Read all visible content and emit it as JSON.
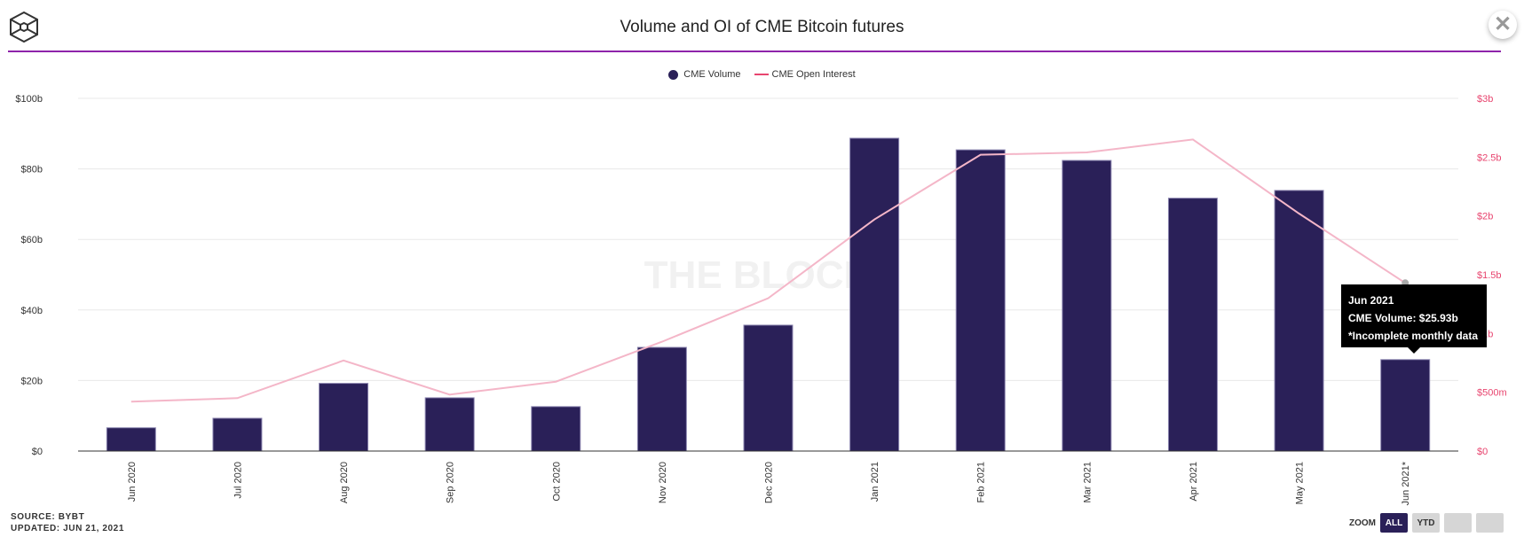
{
  "header": {
    "title": "Volume and OI of CME Bitcoin futures",
    "close_label": "✕"
  },
  "legend": {
    "volume": "CME Volume",
    "oi": "CME Open Interest"
  },
  "watermark": "THE BLOCK",
  "footer": {
    "source": "SOURCE: BYBT",
    "updated": "UPDATED: JUN 21, 2021"
  },
  "zoom": {
    "label": "ZOOM",
    "buttons": [
      "ALL",
      "YTD",
      "",
      ""
    ],
    "active": "ALL"
  },
  "tooltip": {
    "line1": "Jun 2021",
    "line2": "CME Volume: $25.93b",
    "line3": "*Incomplete monthly data"
  },
  "colors": {
    "volume": "#2a2058",
    "oi": "#f4b6c8",
    "right_axis": "#e8456f",
    "rule": "#8e24aa"
  },
  "chart_data": {
    "type": "bar",
    "title": "Volume and OI of CME Bitcoin futures",
    "categories": [
      "Jun 2020",
      "Jul 2020",
      "Aug 2020",
      "Sep 2020",
      "Oct 2020",
      "Nov 2020",
      "Dec 2020",
      "Jan 2021",
      "Feb 2021",
      "Mar 2021",
      "Apr 2021",
      "May 2021",
      "Jun 2021*"
    ],
    "series": [
      {
        "name": "CME Volume",
        "type": "bar",
        "axis": "left",
        "unit": "billion USD",
        "values": [
          6.6,
          9.3,
          19.2,
          15.1,
          12.6,
          29.4,
          35.7,
          88.7,
          85.4,
          82.4,
          71.7,
          73.9,
          25.93
        ]
      },
      {
        "name": "CME Open Interest",
        "type": "line",
        "axis": "right",
        "unit": "billion USD",
        "values": [
          0.42,
          0.45,
          0.77,
          0.48,
          0.59,
          0.93,
          1.3,
          1.97,
          2.52,
          2.54,
          2.65,
          2.02,
          1.43
        ]
      }
    ],
    "left_axis": {
      "ylim": [
        0,
        100
      ],
      "ticks": [
        0,
        20,
        40,
        60,
        80,
        100
      ],
      "tick_labels": [
        "$0",
        "$20b",
        "$40b",
        "$60b",
        "$80b",
        "$100b"
      ]
    },
    "right_axis": {
      "ylim": [
        0,
        3
      ],
      "ticks": [
        0,
        0.5,
        1,
        1.5,
        2,
        2.5,
        3
      ],
      "tick_labels": [
        "$0",
        "$500m",
        "$1b",
        "$1.5b",
        "$2b",
        "$2.5b",
        "$3b"
      ]
    },
    "legend_position": "top-center",
    "grid": true
  }
}
